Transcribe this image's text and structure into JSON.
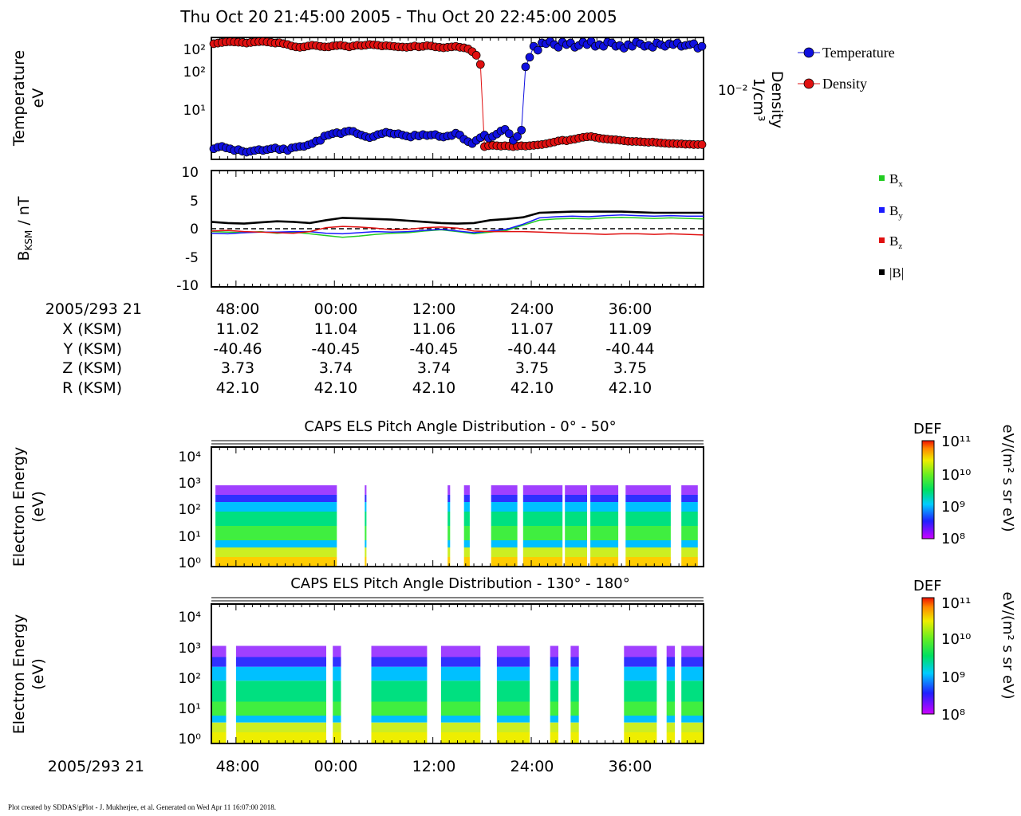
{
  "header": {
    "title": "Thu Oct 20 21:45:00 2005 - Thu Oct 20 22:45:00 2005"
  },
  "footer": {
    "credit": "Plot created by SDDAS/gPlot - J. Mukherjee, et al.  Generated on Wed Apr 11 16:07:00 2018."
  },
  "x_axis": {
    "ticks": [
      "48:00",
      "00:00",
      "12:00",
      "24:00",
      "36:00"
    ],
    "bottom_epoch_label": "2005/293 21"
  },
  "ephemeris": {
    "epoch_label": "2005/293 21",
    "rows": [
      {
        "label": "X (KSM)",
        "values": [
          "11.02",
          "11.04",
          "11.06",
          "11.07",
          "11.09"
        ]
      },
      {
        "label": "Y (KSM)",
        "values": [
          "-40.46",
          "-40.45",
          "-40.45",
          "-40.44",
          "-40.44"
        ]
      },
      {
        "label": "Z (KSM)",
        "values": [
          "3.73",
          "3.74",
          "3.74",
          "3.75",
          "3.75"
        ]
      },
      {
        "label": "R (KSM)",
        "values": [
          "42.10",
          "42.10",
          "42.10",
          "42.10",
          "42.10"
        ]
      }
    ]
  },
  "colors": {
    "temperature": "#1010e0",
    "density": "#e01010",
    "bx": "#22cc22",
    "by": "#1a1aff",
    "bz": "#e01010",
    "btot": "#000000"
  },
  "chart_data": [
    {
      "type": "scatter",
      "name": "moments",
      "ylabel_left": [
        "Temperature",
        "eV"
      ],
      "ylabel_right": [
        "Density",
        "1/cm³"
      ],
      "left_ticks": [
        "10²",
        "10²",
        "10¹"
      ],
      "right_ticks": [
        "10⁻²"
      ],
      "legend": [
        "Temperature",
        "Density"
      ],
      "temperature_eV": [
        3.3,
        3.5,
        3.6,
        3.4,
        3.3,
        3.1,
        3.2,
        3.0,
        2.9,
        3.0,
        3.1,
        3.2,
        3.1,
        3.2,
        3.3,
        3.4,
        3.2,
        3.3,
        3.1,
        3.4,
        3.5,
        3.6,
        3.6,
        3.8,
        4.0,
        4.4,
        4.5,
        5.3,
        5.5,
        5.8,
        6.0,
        5.8,
        6.2,
        6.4,
        6.3,
        5.8,
        5.5,
        5.2,
        5.0,
        5.2,
        5.6,
        5.8,
        6.1,
        5.9,
        5.7,
        5.8,
        5.5,
        5.3,
        5.1,
        5.5,
        5.3,
        5.6,
        5.4,
        5.5,
        5.6,
        5.2,
        5.1,
        5.3,
        5.4,
        5.9,
        5.5,
        4.7,
        4.3,
        4.0,
        4.5,
        5.0,
        5.5,
        4.9,
        5.2,
        5.7,
        6.4,
        6.8,
        5.8,
        4.5,
        5.2,
        6.6,
        70,
        100,
        150,
        130,
        170,
        165,
        180,
        160,
        145,
        175,
        160,
        170,
        145,
        155,
        175,
        160,
        180,
        150,
        160,
        150,
        175,
        170,
        150,
        155,
        140,
        160,
        150,
        175,
        165,
        150,
        155,
        145,
        170,
        160,
        150,
        165,
        160,
        170,
        150,
        155,
        160,
        165,
        140,
        150
      ],
      "density": [
        140,
        150,
        160,
        170,
        175,
        170,
        165,
        160,
        150,
        160,
        170,
        175,
        180,
        170,
        160,
        150,
        155,
        140,
        130,
        110,
        100,
        95,
        100,
        110,
        120,
        115,
        105,
        100,
        100,
        110,
        115,
        120,
        110,
        100,
        110,
        120,
        115,
        120,
        130,
        125,
        120,
        110,
        115,
        110,
        105,
        100,
        98,
        95,
        100,
        110,
        100,
        105,
        115,
        110,
        100,
        95,
        90,
        95,
        100,
        105,
        95,
        90,
        80,
        60,
        40,
        15,
        0.002,
        0.0022,
        0.0023,
        0.0022,
        0.0021,
        0.0022,
        0.0021,
        0.002,
        0.0021,
        0.0022,
        0.0021,
        0.0022,
        0.0023,
        0.0024,
        0.0025,
        0.0027,
        0.003,
        0.0033,
        0.0037,
        0.004,
        0.0038,
        0.0042,
        0.0045,
        0.005,
        0.0055,
        0.0058,
        0.006,
        0.0055,
        0.005,
        0.0047,
        0.0045,
        0.0043,
        0.0042,
        0.004,
        0.0038,
        0.0036,
        0.0035,
        0.0035,
        0.0034,
        0.0033,
        0.0032,
        0.0033,
        0.0031,
        0.003,
        0.0029,
        0.0028,
        0.0028,
        0.0027,
        0.0027,
        0.0026,
        0.0026,
        0.0025,
        0.0025,
        0.0025
      ],
      "ylim_left_eV": [
        2.5,
        180
      ]
    },
    {
      "type": "line",
      "name": "magnetic-field",
      "ylabel": "B_KSM / nT",
      "ylim": [
        -10,
        10
      ],
      "yticks": [
        "10",
        "5",
        "0",
        "-5",
        "-10"
      ],
      "legend": [
        "Bx",
        "By",
        "Bz",
        "|B|"
      ],
      "x_minutes": [
        0,
        2,
        4,
        6,
        8,
        10,
        12,
        14,
        16,
        18,
        20,
        22,
        24,
        26,
        28,
        30,
        32,
        34,
        36,
        38,
        40,
        42,
        44,
        46,
        48,
        50,
        52,
        54,
        56,
        58,
        60
      ],
      "series": [
        {
          "name": "Bx",
          "values": [
            -0.5,
            -0.6,
            -0.7,
            -0.5,
            -0.8,
            -0.6,
            -0.9,
            -1.2,
            -1.5,
            -1.3,
            -1.0,
            -0.8,
            -0.7,
            -0.4,
            -0.2,
            -0.5,
            -0.9,
            -0.6,
            -0.3,
            0.6,
            1.5,
            1.7,
            1.8,
            1.7,
            1.9,
            2.0,
            1.9,
            1.8,
            1.9,
            1.8,
            1.7
          ]
        },
        {
          "name": "By",
          "values": [
            -0.8,
            -0.9,
            -0.7,
            -0.6,
            -0.6,
            -0.5,
            -0.5,
            -0.8,
            -0.9,
            -0.7,
            -0.5,
            -0.6,
            -0.5,
            -0.3,
            -0.1,
            -0.4,
            -0.7,
            -0.4,
            -0.1,
            0.8,
            1.9,
            2.1,
            2.2,
            2.1,
            2.3,
            2.4,
            2.3,
            2.2,
            2.3,
            2.2,
            2.2
          ]
        },
        {
          "name": "Bz",
          "values": [
            -0.4,
            -0.3,
            -0.5,
            -0.6,
            -0.7,
            -0.8,
            -0.5,
            0.2,
            0.4,
            0.3,
            0.1,
            -0.2,
            -0.1,
            0.2,
            0.3,
            0.1,
            -0.4,
            -0.5,
            -0.5,
            -0.5,
            -0.6,
            -0.7,
            -0.8,
            -0.9,
            -1.0,
            -0.9,
            -0.9,
            -1.0,
            -0.9,
            -1.0,
            -1.1
          ]
        },
        {
          "name": "|B|",
          "values": [
            1.2,
            1.0,
            0.9,
            1.1,
            1.3,
            1.2,
            1.0,
            1.5,
            1.9,
            1.8,
            1.7,
            1.6,
            1.4,
            1.2,
            1.0,
            0.9,
            1.0,
            1.5,
            1.7,
            2.0,
            2.8,
            2.9,
            3.0,
            3.0,
            3.0,
            3.0,
            2.9,
            2.8,
            2.8,
            2.8,
            2.8
          ]
        }
      ]
    },
    {
      "type": "heatmap",
      "name": "els-pad-0-50",
      "title": "CAPS ELS Pitch Angle Distribution - 0° - 50°",
      "ylabel": [
        "Electron Energy",
        "(eV)"
      ],
      "yticks": [
        "10⁴",
        "10³",
        "10²",
        "10¹",
        "10⁰"
      ],
      "colorbar": {
        "title": "DEF",
        "unit": "eV/(m² s sr eV)",
        "ticks": [
          "10¹¹",
          "10¹⁰",
          "10⁹",
          "10⁸"
        ]
      },
      "data_intervals_min": [
        [
          0.5,
          15.3
        ],
        [
          18.7,
          18.9
        ],
        [
          28.8,
          29.1
        ],
        [
          30.8,
          31.5
        ],
        [
          34.1,
          37.3
        ],
        [
          38.0,
          42.8
        ],
        [
          43.1,
          45.8
        ],
        [
          46.2,
          49.6
        ],
        [
          50.5,
          56.0
        ],
        [
          57.3,
          59.3
        ]
      ]
    },
    {
      "type": "heatmap",
      "name": "els-pad-130-180",
      "title": "CAPS ELS Pitch Angle Distribution - 130° - 180°",
      "ylabel": [
        "Electron Energy",
        "(eV)"
      ],
      "yticks": [
        "10⁴",
        "10³",
        "10²",
        "10¹",
        "10⁰"
      ],
      "colorbar": {
        "title": "DEF",
        "unit": "eV/(m² s sr eV)",
        "ticks": [
          "10¹¹",
          "10¹⁰",
          "10⁹",
          "10⁸"
        ]
      },
      "data_intervals_min": [
        [
          0.0,
          1.8
        ],
        [
          3.0,
          14.0
        ],
        [
          14.8,
          15.8
        ],
        [
          19.5,
          26.3
        ],
        [
          28.0,
          32.8
        ],
        [
          34.8,
          38.8
        ],
        [
          41.3,
          42.3
        ],
        [
          43.8,
          44.8
        ],
        [
          50.3,
          54.3
        ],
        [
          55.5,
          56.5
        ],
        [
          57.3,
          60.0
        ]
      ]
    }
  ]
}
